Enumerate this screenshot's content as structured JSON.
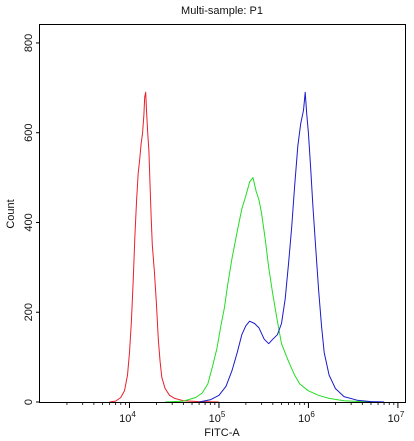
{
  "chart_data": {
    "type": "line",
    "title": "Multi-sample: P1",
    "xlabel": "FITC-A",
    "ylabel": "Count",
    "x_scale": "log",
    "xlim": [
      1000,
      12000000
    ],
    "ylim": [
      0,
      840
    ],
    "yticks": [
      0,
      200,
      400,
      600,
      800
    ],
    "xticks": [
      {
        "base": "10",
        "exp": "4",
        "value": 10000
      },
      {
        "base": "10",
        "exp": "5",
        "value": 100000
      },
      {
        "base": "10",
        "exp": "6",
        "value": 1000000
      },
      {
        "base": "10",
        "exp": "7",
        "value": 10000000
      }
    ],
    "grid": false,
    "legend": "none",
    "series": [
      {
        "color": "#e8202a",
        "points": [
          [
            6000,
            0
          ],
          [
            7000,
            2
          ],
          [
            8000,
            10
          ],
          [
            8800,
            25
          ],
          [
            9500,
            60
          ],
          [
            10000,
            110
          ],
          [
            10500,
            180
          ],
          [
            11000,
            270
          ],
          [
            11500,
            370
          ],
          [
            12000,
            450
          ],
          [
            12500,
            510
          ],
          [
            13000,
            540
          ],
          [
            13500,
            575
          ],
          [
            14000,
            600
          ],
          [
            14500,
            640
          ],
          [
            14800,
            680
          ],
          [
            15200,
            690
          ],
          [
            15500,
            650
          ],
          [
            16000,
            600
          ],
          [
            16500,
            560
          ],
          [
            17000,
            480
          ],
          [
            17500,
            410
          ],
          [
            18000,
            350
          ],
          [
            19000,
            290
          ],
          [
            20000,
            220
          ],
          [
            21000,
            140
          ],
          [
            22000,
            90
          ],
          [
            23000,
            55
          ],
          [
            25000,
            30
          ],
          [
            28000,
            15
          ],
          [
            32000,
            8
          ],
          [
            40000,
            3
          ],
          [
            60000,
            1
          ],
          [
            100000,
            0
          ]
        ]
      },
      {
        "color": "#22dd22",
        "points": [
          [
            25000,
            0
          ],
          [
            40000,
            2
          ],
          [
            55000,
            10
          ],
          [
            65000,
            20
          ],
          [
            75000,
            40
          ],
          [
            85000,
            80
          ],
          [
            95000,
            120
          ],
          [
            105000,
            170
          ],
          [
            115000,
            210
          ],
          [
            125000,
            260
          ],
          [
            140000,
            320
          ],
          [
            160000,
            380
          ],
          [
            180000,
            430
          ],
          [
            200000,
            460
          ],
          [
            220000,
            490
          ],
          [
            240000,
            500
          ],
          [
            260000,
            470
          ],
          [
            280000,
            450
          ],
          [
            300000,
            420
          ],
          [
            330000,
            360
          ],
          [
            360000,
            300
          ],
          [
            400000,
            240
          ],
          [
            450000,
            180
          ],
          [
            500000,
            130
          ],
          [
            600000,
            90
          ],
          [
            700000,
            60
          ],
          [
            800000,
            40
          ],
          [
            1000000,
            25
          ],
          [
            1300000,
            15
          ],
          [
            1700000,
            8
          ],
          [
            2500000,
            3
          ],
          [
            4000000,
            1
          ],
          [
            6000000,
            0
          ]
        ]
      },
      {
        "color": "#1a1acc",
        "points": [
          [
            60000,
            0
          ],
          [
            80000,
            5
          ],
          [
            100000,
            15
          ],
          [
            120000,
            35
          ],
          [
            140000,
            70
          ],
          [
            160000,
            110
          ],
          [
            180000,
            150
          ],
          [
            200000,
            170
          ],
          [
            220000,
            180
          ],
          [
            250000,
            175
          ],
          [
            280000,
            165
          ],
          [
            320000,
            140
          ],
          [
            360000,
            130
          ],
          [
            400000,
            140
          ],
          [
            450000,
            150
          ],
          [
            500000,
            175
          ],
          [
            550000,
            230
          ],
          [
            600000,
            310
          ],
          [
            650000,
            390
          ],
          [
            700000,
            480
          ],
          [
            760000,
            570
          ],
          [
            820000,
            620
          ],
          [
            880000,
            650
          ],
          [
            920000,
            690
          ],
          [
            960000,
            640
          ],
          [
            1000000,
            600
          ],
          [
            1060000,
            520
          ],
          [
            1120000,
            440
          ],
          [
            1200000,
            350
          ],
          [
            1300000,
            250
          ],
          [
            1400000,
            170
          ],
          [
            1500000,
            110
          ],
          [
            1700000,
            60
          ],
          [
            2000000,
            30
          ],
          [
            2500000,
            12
          ],
          [
            3500000,
            4
          ],
          [
            5000000,
            1
          ],
          [
            7000000,
            0
          ]
        ]
      }
    ]
  }
}
